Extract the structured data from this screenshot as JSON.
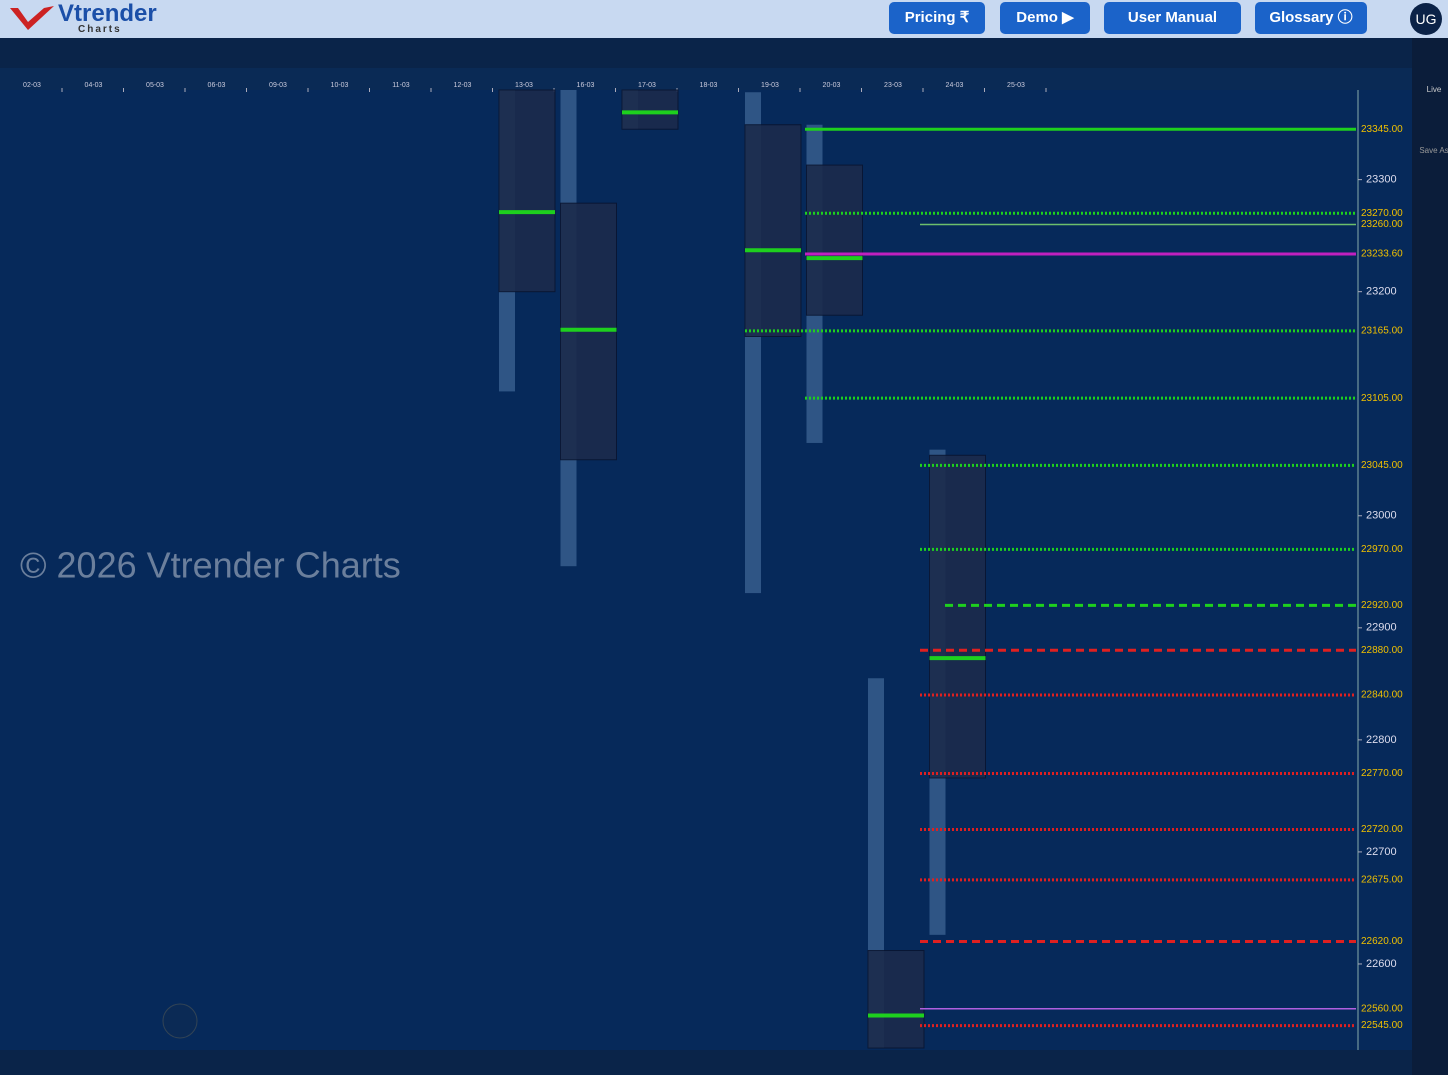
{
  "header": {
    "logo": "Vtrender",
    "logo_sub": "Charts",
    "buttons": [
      "Pricing ₹",
      "Demo ▶",
      "User Manual",
      "Glossary ⓘ"
    ],
    "user": "UG"
  },
  "sidebar": [
    "Live",
    "Save As"
  ],
  "watermark": "© 2026 Vtrender Charts",
  "chart_data": {
    "type": "market-profile",
    "categories": [
      "02-03",
      "04-03",
      "05-03",
      "06-03",
      "09-03",
      "10-03",
      "11-03",
      "12-03",
      "13-03",
      "16-03",
      "17-03",
      "18-03",
      "19-03",
      "20-03",
      "23-03",
      "24-03",
      "25-03"
    ],
    "ylim": [
      22525,
      23380
    ],
    "yticks": [
      23300,
      23200,
      23000,
      22900,
      22800,
      22700,
      22600
    ],
    "profiles": [
      {
        "date": "13-03",
        "high": 23380,
        "low": 23111,
        "vah": 23380,
        "val": 23200,
        "poc": 23271
      },
      {
        "date": "16-03",
        "high": 23380,
        "low": 22955,
        "vah": 23279,
        "val": 23050,
        "poc": 23166
      },
      {
        "date": "17-03",
        "high": 23380,
        "low": 23345,
        "vah": 23380,
        "val": 23345,
        "poc": 23360
      },
      {
        "date": "19-03",
        "high": 23378,
        "low": 22931,
        "vah": 23349,
        "val": 23160,
        "poc": 23237
      },
      {
        "date": "20-03",
        "high": 23349,
        "low": 23065,
        "vah": 23313,
        "val": 23179,
        "poc": 23230
      },
      {
        "date": "23-03",
        "high": 22855,
        "low": 22525,
        "vah": 22612,
        "val": 22525,
        "poc": 22554
      },
      {
        "date": "24-03",
        "high": 23059,
        "low": 22626,
        "vah": 23054,
        "val": 22766,
        "poc": 22873
      }
    ],
    "levels": [
      {
        "value": 23345,
        "label": "23345.00",
        "color": "#1ed01e",
        "style": "solid"
      },
      {
        "value": 23270,
        "label": "23270.00",
        "color": "#1ed01e",
        "style": "dotted"
      },
      {
        "value": 23260,
        "label": "23260.00",
        "color": "#6cbf6c",
        "style": "thin"
      },
      {
        "value": 23233.6,
        "label": "23233.60",
        "color": "#c020c0",
        "style": "solid"
      },
      {
        "value": 23165,
        "label": "23165.00",
        "color": "#1ed01e",
        "style": "dotted"
      },
      {
        "value": 23105,
        "label": "23105.00",
        "color": "#1ed01e",
        "style": "dotted"
      },
      {
        "value": 23045,
        "label": "23045.00",
        "color": "#1ed01e",
        "style": "dotted"
      },
      {
        "value": 22970,
        "label": "22970.00",
        "color": "#1ed01e",
        "style": "dotted"
      },
      {
        "value": 22920,
        "label": "22920.00",
        "color": "#1ed01e",
        "style": "dashed"
      },
      {
        "value": 22880,
        "label": "22880.00",
        "color": "#e02020",
        "style": "dashed"
      },
      {
        "value": 22840,
        "label": "22840.00",
        "color": "#e02020",
        "style": "dotted"
      },
      {
        "value": 22770,
        "label": "22770.00",
        "color": "#e02020",
        "style": "dotted"
      },
      {
        "value": 22720,
        "label": "22720.00",
        "color": "#e02020",
        "style": "dotted"
      },
      {
        "value": 22675,
        "label": "22675.00",
        "color": "#e02020",
        "style": "dotted"
      },
      {
        "value": 22620,
        "label": "22620.00",
        "color": "#e02020",
        "style": "dashed"
      },
      {
        "value": 22560,
        "label": "22560.00",
        "color": "#b060e0",
        "style": "thin"
      },
      {
        "value": 22545,
        "label": "22545.00",
        "color": "#e02020",
        "style": "dotted"
      }
    ]
  }
}
